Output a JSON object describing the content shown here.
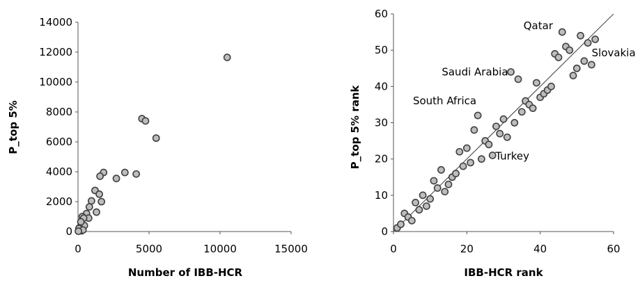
{
  "chart_data": [
    {
      "type": "scatter",
      "xlabel": "Number of IBB-HCR",
      "ylabel": "P_top 5%",
      "xlim": [
        0,
        15000
      ],
      "ylim": [
        0,
        14000
      ],
      "xticks": [
        0,
        5000,
        10000,
        15000
      ],
      "yticks": [
        0,
        2000,
        4000,
        6000,
        8000,
        10000,
        12000,
        14000
      ],
      "grid": false,
      "colors": {
        "marker_fill": "#bdbdbd",
        "marker_stroke": "#404040"
      },
      "points": [
        [
          10500,
          11650
        ],
        [
          4500,
          7550
        ],
        [
          4750,
          7400
        ],
        [
          5500,
          6250
        ],
        [
          3300,
          3950
        ],
        [
          4100,
          3850
        ],
        [
          2700,
          3550
        ],
        [
          1800,
          3950
        ],
        [
          1550,
          3700
        ],
        [
          1200,
          2750
        ],
        [
          1500,
          2500
        ],
        [
          950,
          2050
        ],
        [
          1650,
          2000
        ],
        [
          800,
          1650
        ],
        [
          600,
          1200
        ],
        [
          1300,
          1300
        ],
        [
          750,
          900
        ],
        [
          300,
          1000
        ],
        [
          400,
          900
        ],
        [
          450,
          400
        ],
        [
          200,
          650
        ],
        [
          100,
          250
        ],
        [
          150,
          100
        ],
        [
          250,
          50
        ],
        [
          50,
          50
        ],
        [
          60,
          200
        ],
        [
          350,
          100
        ],
        [
          30,
          20
        ]
      ]
    },
    {
      "type": "scatter",
      "xlabel": "IBB-HCR rank",
      "ylabel": "P_top 5% rank",
      "xlim": [
        0,
        60
      ],
      "ylim": [
        0,
        60
      ],
      "xticks": [
        0,
        20,
        40,
        60
      ],
      "yticks": [
        0,
        10,
        20,
        30,
        40,
        50,
        60
      ],
      "grid": false,
      "reference_line": [
        [
          0,
          0
        ],
        [
          60,
          60
        ]
      ],
      "colors": {
        "marker_fill": "#bdbdbd",
        "marker_stroke": "#404040",
        "line": "#555555"
      },
      "annotations": [
        {
          "text": "Qatar",
          "x": 45,
          "y": 55
        },
        {
          "text": "Saudi Arabia",
          "x": 32,
          "y": 44
        },
        {
          "text": "South Africa",
          "x": 23,
          "y": 32
        },
        {
          "text": "Turkey",
          "x": 27,
          "y": 21
        },
        {
          "text": "Slovakia",
          "x": 55,
          "y": 46
        }
      ],
      "points": [
        [
          1,
          1
        ],
        [
          2,
          2
        ],
        [
          3,
          5
        ],
        [
          4,
          4
        ],
        [
          5,
          3
        ],
        [
          6,
          8
        ],
        [
          7,
          6
        ],
        [
          8,
          10
        ],
        [
          9,
          7
        ],
        [
          10,
          9
        ],
        [
          11,
          14
        ],
        [
          12,
          12
        ],
        [
          13,
          17
        ],
        [
          14,
          11
        ],
        [
          15,
          13
        ],
        [
          16,
          15
        ],
        [
          17,
          16
        ],
        [
          18,
          22
        ],
        [
          19,
          18
        ],
        [
          20,
          23
        ],
        [
          21,
          19
        ],
        [
          22,
          28
        ],
        [
          23,
          32
        ],
        [
          24,
          20
        ],
        [
          25,
          25
        ],
        [
          26,
          24
        ],
        [
          27,
          21
        ],
        [
          28,
          29
        ],
        [
          29,
          27
        ],
        [
          30,
          31
        ],
        [
          31,
          26
        ],
        [
          32,
          44
        ],
        [
          33,
          30
        ],
        [
          34,
          42
        ],
        [
          35,
          33
        ],
        [
          36,
          36
        ],
        [
          37,
          35
        ],
        [
          38,
          34
        ],
        [
          39,
          41
        ],
        [
          40,
          37
        ],
        [
          41,
          38
        ],
        [
          42,
          39
        ],
        [
          43,
          40
        ],
        [
          44,
          49
        ],
        [
          45,
          48
        ],
        [
          46,
          55
        ],
        [
          47,
          51
        ],
        [
          48,
          50
        ],
        [
          49,
          43
        ],
        [
          50,
          45
        ],
        [
          51,
          54
        ],
        [
          52,
          47
        ],
        [
          53,
          52
        ],
        [
          54,
          46
        ],
        [
          55,
          53
        ]
      ]
    }
  ]
}
